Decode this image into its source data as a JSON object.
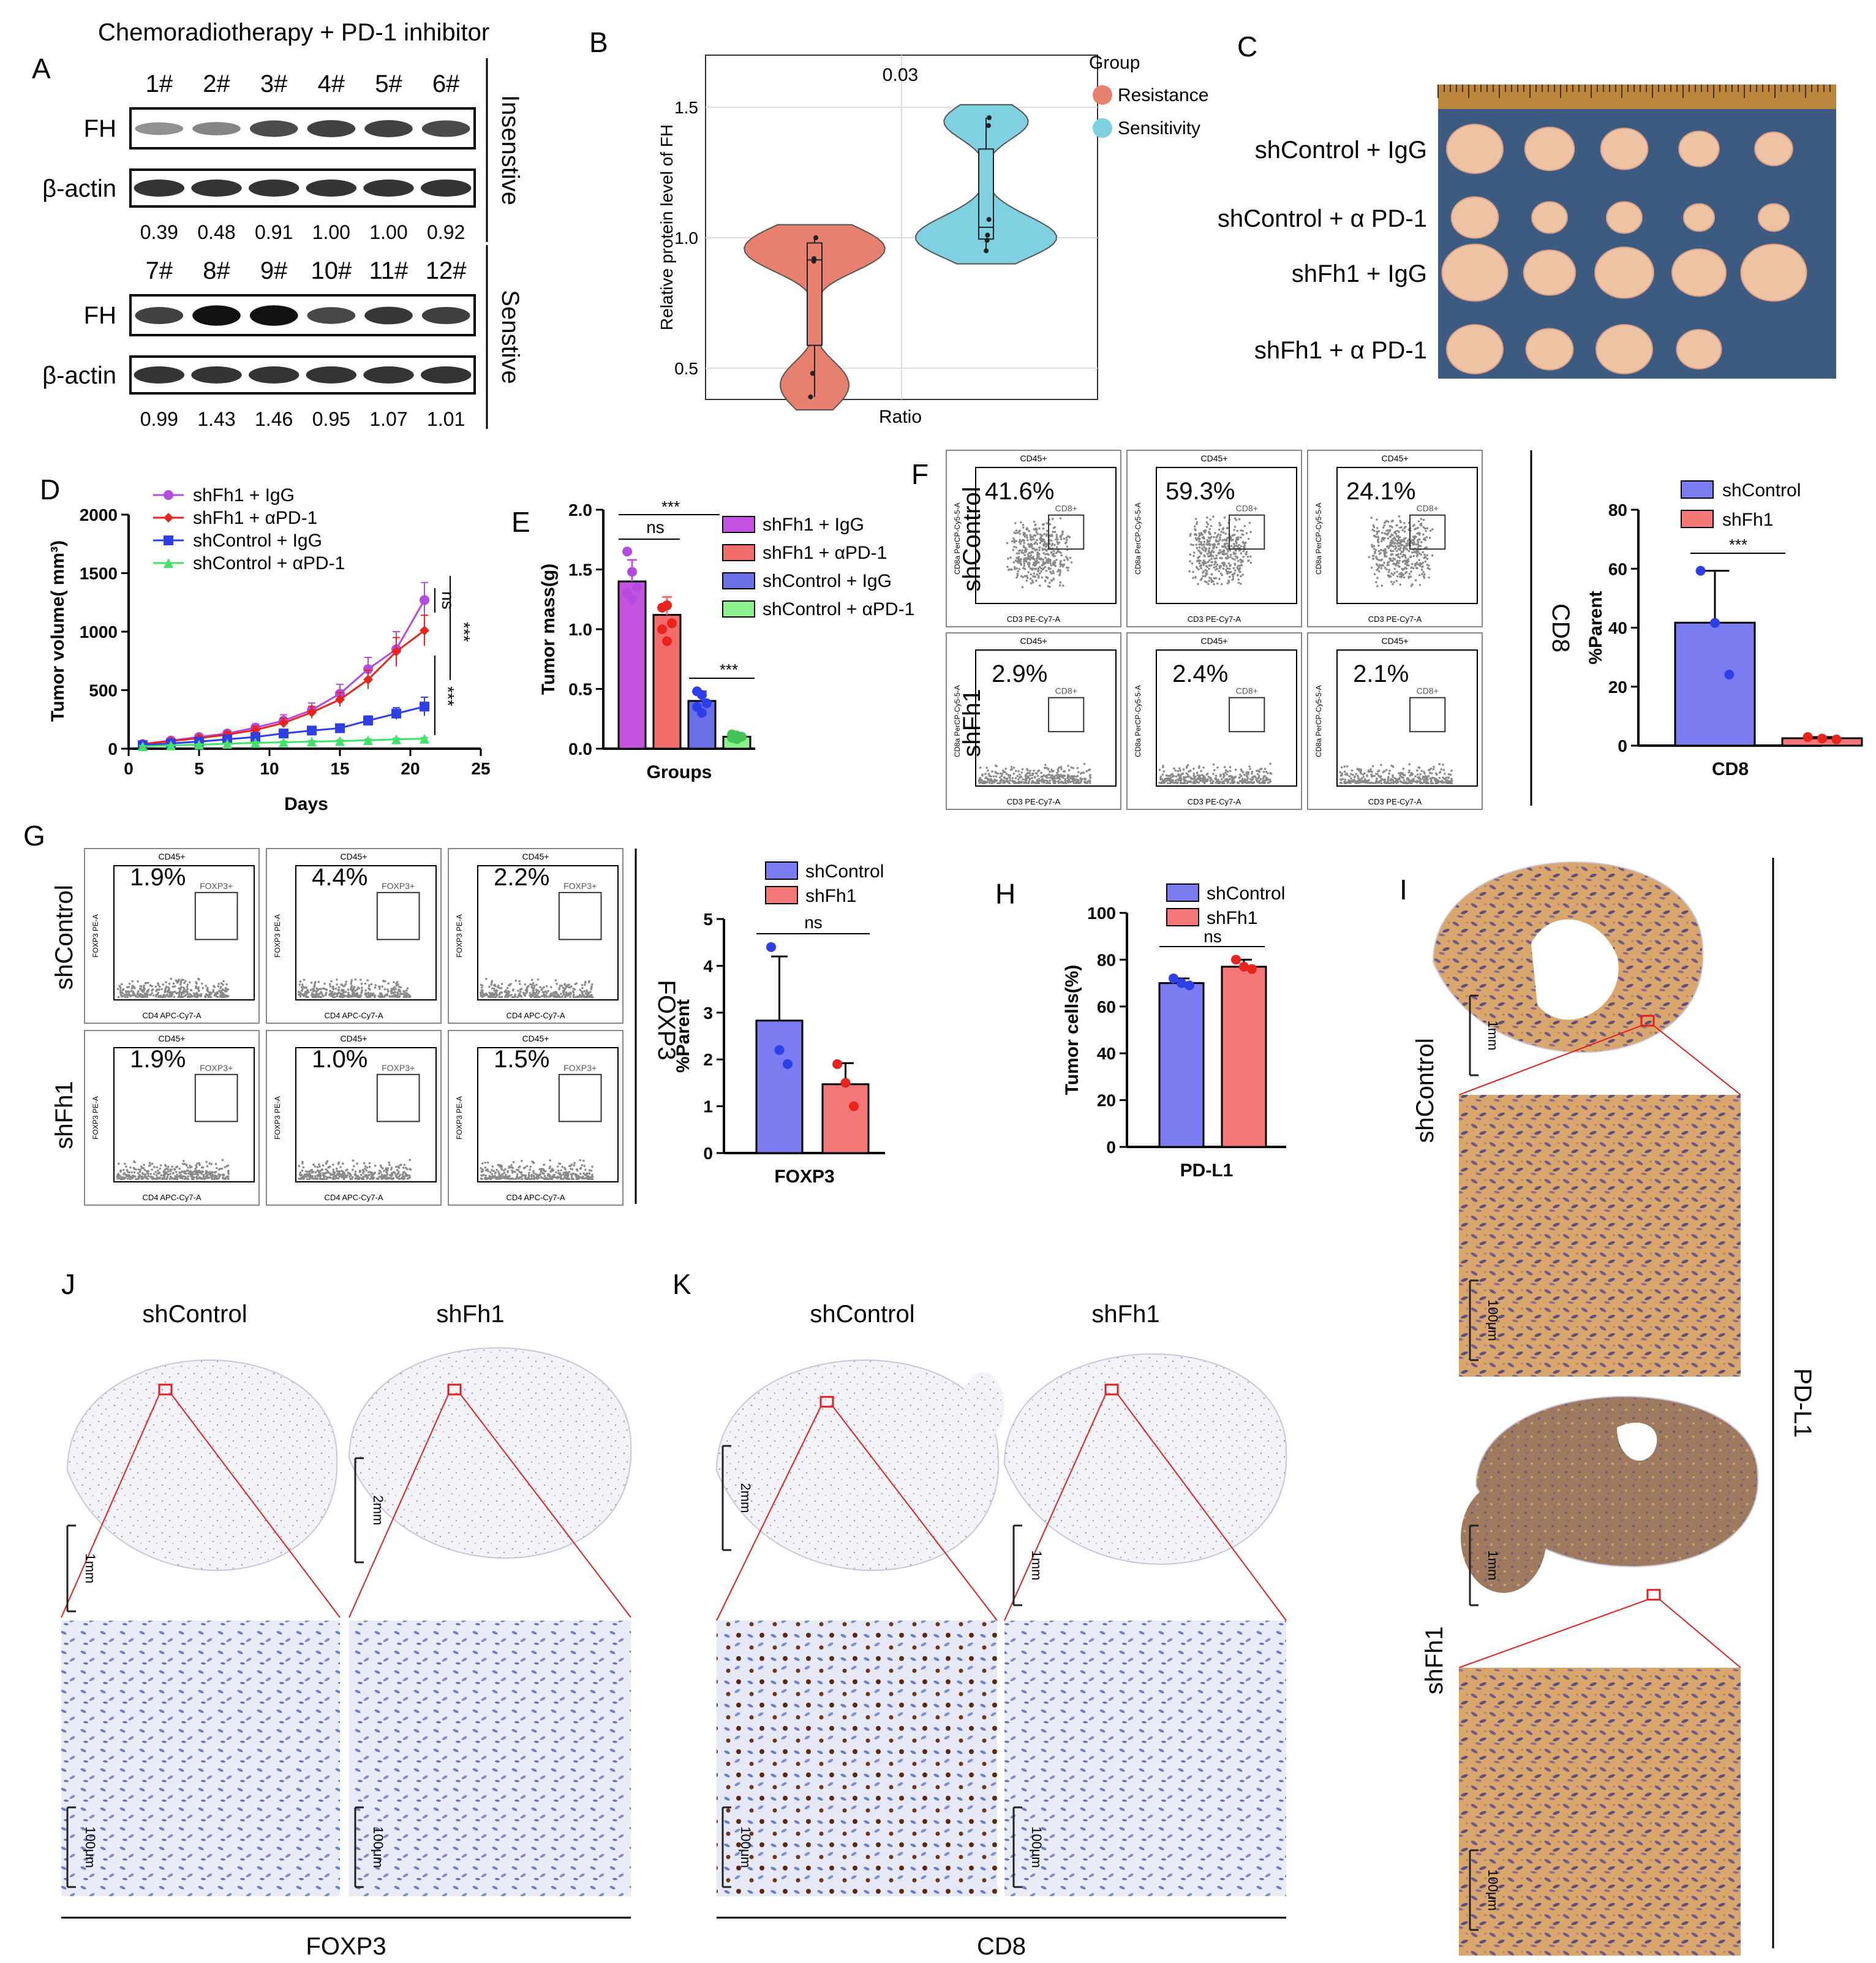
{
  "panels": {
    "A": {
      "letter": "A",
      "title": "Chemoradiotherapy + PD-1 inhibitor",
      "blots": [
        {
          "lanes": [
            "1#",
            "2#",
            "3#",
            "4#",
            "5#",
            "6#"
          ],
          "ratios": [
            "0.39",
            "0.48",
            "0.91",
            "1.00",
            "1.00",
            "0.92"
          ],
          "group": "Insenstive",
          "fh_intensity": [
            0.39,
            0.48,
            0.91,
            1.0,
            1.0,
            0.92
          ]
        },
        {
          "lanes": [
            "7#",
            "8#",
            "9#",
            "10#",
            "11#",
            "12#"
          ],
          "ratios": [
            "0.99",
            "1.43",
            "1.46",
            "0.95",
            "1.07",
            "1.01"
          ],
          "group": "Senstive",
          "fh_intensity": [
            0.99,
            1.43,
            1.46,
            0.95,
            1.07,
            1.01
          ]
        }
      ],
      "row_fh": "FH",
      "row_actin": "β-actin"
    },
    "B": {
      "letter": "B"
    },
    "C": {
      "letter": "C",
      "groups": [
        "shControl + IgG",
        "shControl + α PD-1",
        "shFh1 + IgG",
        "shFh1 + α PD-1"
      ]
    },
    "D": {
      "letter": "D"
    },
    "E": {
      "letter": "E"
    },
    "F": {
      "letter": "F",
      "row_labels": [
        "shControl",
        "shFh1"
      ],
      "percents": [
        [
          "41.6%",
          "59.3%",
          "24.1%"
        ],
        [
          "2.9%",
          "2.4%",
          "2.1%"
        ]
      ],
      "gate_title": "CD45+",
      "gate_label": "CD8+",
      "x_axis": "CD3 PE-Cy7-A",
      "y_axis": "CD8a PerCP-Cy5-5-A",
      "side_label": "CD8"
    },
    "G": {
      "letter": "G",
      "row_labels": [
        "shControl",
        "shFh1"
      ],
      "percents": [
        [
          "1.9%",
          "4.4%",
          "2.2%"
        ],
        [
          "1.9%",
          "1.0%",
          "1.5%"
        ]
      ],
      "gate_title": "CD45+",
      "gate_label": "FOXP3+",
      "x_axis": "CD4 APC-Cy7-A",
      "y_axis": "FOXP3 PE-A",
      "side_label": "FOXP3"
    },
    "H": {
      "letter": "H"
    },
    "I": {
      "letter": "I",
      "labels": [
        "shControl",
        "shFh1"
      ],
      "side_label": "PD-L1",
      "scale_top": "1mm",
      "scale_bottom": "100μm"
    },
    "J": {
      "letter": "J",
      "labels": [
        "shControl",
        "shFh1"
      ],
      "footer": "FOXP3",
      "scales": [
        "1mm",
        "2mm",
        "100μm",
        "100μm"
      ]
    },
    "K": {
      "letter": "K",
      "labels": [
        "shControl",
        "shFh1"
      ],
      "footer": "CD8",
      "scales": [
        "2mm",
        "1mm",
        "100μm",
        "100μm"
      ]
    }
  },
  "colors": {
    "purple": "#b44be1",
    "red": "#e8241c",
    "blue": "#2f3fe8",
    "green": "#42e26a",
    "bar_purple": "#c653e0",
    "bar_salmon": "#f26c6c",
    "bar_blue": "#6b6fe6",
    "bar_green": "#8cf08c",
    "flow_blue": "#7a7cf0",
    "flow_red": "#f57878",
    "resistance": "#e8806f",
    "sensitivity": "#7fd0e0"
  },
  "chart_data": [
    {
      "id": "B",
      "type": "violin",
      "title": "0.03",
      "xlabel": "Ratio",
      "ylabel": "Relative protein level of FH",
      "yticks": [
        0.5,
        1.0,
        1.5
      ],
      "ylim": [
        0.38,
        1.7
      ],
      "legend_title": "Group",
      "series": [
        {
          "name": "Resistance",
          "values": [
            0.39,
            0.48,
            0.91,
            1.0,
            1.0,
            0.92
          ]
        },
        {
          "name": "Sensitivity",
          "values": [
            0.99,
            1.43,
            1.46,
            0.95,
            1.07,
            1.01
          ]
        }
      ]
    },
    {
      "id": "D",
      "type": "line",
      "xlabel": "Days",
      "ylabel": "Tumor volume( mm³)",
      "xlim": [
        0,
        25
      ],
      "ylim": [
        0,
        2000
      ],
      "xticks": [
        0,
        5,
        10,
        15,
        20,
        25
      ],
      "yticks": [
        0,
        500,
        1000,
        1500,
        2000
      ],
      "x": [
        1,
        3,
        5,
        7,
        9,
        11,
        13,
        15,
        17,
        19,
        21
      ],
      "series": [
        {
          "name": "shFh1 + IgG",
          "values": [
            40,
            70,
            100,
            130,
            180,
            240,
            330,
            470,
            680,
            850,
            1270
          ],
          "err": [
            10,
            15,
            20,
            25,
            30,
            50,
            60,
            80,
            100,
            150,
            150
          ]
        },
        {
          "name": "shFh1 + αPD-1",
          "values": [
            40,
            65,
            90,
            120,
            160,
            220,
            310,
            420,
            590,
            830,
            1010
          ],
          "err": [
            10,
            15,
            20,
            25,
            30,
            40,
            50,
            60,
            80,
            120,
            130
          ]
        },
        {
          "name": "shControl + IgG",
          "values": [
            30,
            45,
            60,
            80,
            100,
            130,
            155,
            175,
            240,
            300,
            360
          ],
          "err": [
            5,
            10,
            10,
            15,
            20,
            20,
            25,
            30,
            40,
            50,
            80
          ]
        },
        {
          "name": "shControl + αPD-1",
          "values": [
            20,
            28,
            35,
            42,
            50,
            55,
            60,
            65,
            72,
            80,
            85
          ],
          "err": [
            5,
            5,
            5,
            5,
            8,
            8,
            8,
            10,
            10,
            10,
            10
          ]
        }
      ],
      "annotations": [
        "ns",
        "***",
        "***"
      ]
    },
    {
      "id": "E",
      "type": "bar",
      "xlabel": "Groups",
      "ylabel": "Tumor mass(g)",
      "ylim": [
        0,
        2.0
      ],
      "yticks": [
        0.0,
        0.5,
        1.0,
        1.5,
        2.0
      ],
      "categories": [
        "shFh1 + IgG",
        "shFh1 + αPD-1",
        "shControl + IgG",
        "shControl + αPD-1"
      ],
      "values": [
        1.4,
        1.12,
        0.4,
        0.1
      ],
      "err": [
        0.18,
        0.15,
        0.08,
        0.03
      ],
      "points": [
        [
          1.65,
          1.48,
          1.35,
          1.3,
          1.25
        ],
        [
          1.18,
          1.2,
          1.05,
          1.0,
          0.9
        ],
        [
          0.48,
          0.45,
          0.38,
          0.35,
          0.3
        ],
        [
          0.12,
          0.11,
          0.1,
          0.09,
          0.08
        ]
      ],
      "annotations": [
        "***",
        "ns",
        "***"
      ]
    },
    {
      "id": "F",
      "type": "bar",
      "xlabel": "CD8",
      "ylabel": "%Parent",
      "ylim": [
        0,
        80
      ],
      "yticks": [
        0,
        20,
        40,
        60,
        80
      ],
      "categories": [
        "shControl",
        "shFh1"
      ],
      "values": [
        41.7,
        2.5
      ],
      "err": [
        17.6,
        0.4
      ],
      "points": [
        [
          59.3,
          41.6,
          24.1
        ],
        [
          2.9,
          2.4,
          2.1
        ]
      ],
      "annotations": [
        "***"
      ]
    },
    {
      "id": "G",
      "type": "bar",
      "xlabel": "FOXP3",
      "ylabel": "%Parent",
      "ylim": [
        0,
        5
      ],
      "yticks": [
        0,
        1,
        2,
        3,
        4,
        5
      ],
      "categories": [
        "shControl",
        "shFh1"
      ],
      "values": [
        2.83,
        1.47
      ],
      "err": [
        1.37,
        0.45
      ],
      "points": [
        [
          4.4,
          2.2,
          1.9
        ],
        [
          1.9,
          1.5,
          1.0
        ]
      ],
      "annotations": [
        "ns"
      ]
    },
    {
      "id": "H",
      "type": "bar",
      "xlabel": "PD-L1",
      "ylabel": "Tumor cells(%)",
      "ylim": [
        0,
        100
      ],
      "yticks": [
        0,
        20,
        40,
        60,
        80,
        100
      ],
      "categories": [
        "shControl",
        "shFh1"
      ],
      "values": [
        70,
        77
      ],
      "err": [
        2,
        3
      ],
      "points": [
        [
          72,
          70,
          69
        ],
        [
          80,
          77,
          76
        ]
      ],
      "annotations": [
        "ns"
      ]
    }
  ]
}
